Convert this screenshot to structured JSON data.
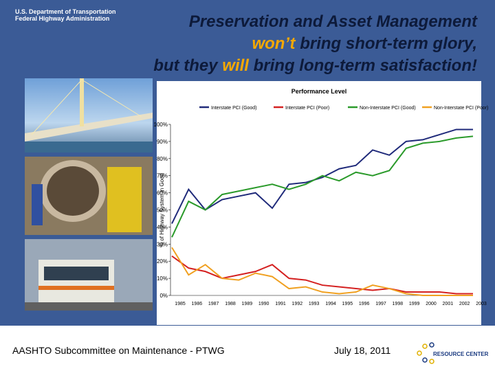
{
  "slide": {
    "logo": [
      "U.S. Department of Transportation",
      "Federal Highway Administration"
    ],
    "title": {
      "line1": "Preservation and Asset Management",
      "line2": [
        "won’t",
        "bring short-term glory,"
      ],
      "line3": [
        "but they",
        "will",
        "bring long-term satisfaction!"
      ]
    },
    "footer": {
      "left": "AASHTO Subcommittee on Maintenance - PTWG",
      "date": "July 18, 2011",
      "logo": "RESOURCE CENTER"
    }
  },
  "chart_data": {
    "type": "line",
    "title": "Performance Level",
    "y_label": "% of Highway System in Good",
    "categories": [
      "1985",
      "1986",
      "1987",
      "1988",
      "1989",
      "1990",
      "1991",
      "1992",
      "1993",
      "1994",
      "1995",
      "1996",
      "1997",
      "1998",
      "1999",
      "2000",
      "2001",
      "2002",
      "2003"
    ],
    "series": [
      {
        "name": "Interstate PCI (Good)",
        "color": "#1f2a7a",
        "values": [
          42,
          62,
          50,
          56,
          58,
          60,
          51,
          65,
          66,
          69,
          74,
          76,
          85,
          82,
          90,
          91,
          94,
          97,
          97
        ]
      },
      {
        "name": "Interstate PCI (Poor)",
        "color": "#d42020",
        "values": [
          23,
          16,
          14,
          10,
          12,
          14,
          18,
          10,
          9,
          6,
          5,
          4,
          3,
          4,
          2,
          2,
          2,
          1,
          1
        ]
      },
      {
        "name": "Non-Interstate PCI (Good)",
        "color": "#2a9a2a",
        "values": [
          34,
          55,
          50,
          59,
          61,
          63,
          65,
          62,
          65,
          70,
          67,
          72,
          70,
          73,
          86,
          89,
          90,
          92,
          93
        ]
      },
      {
        "name": "Non-Interstate PCI (Poor)",
        "color": "#f0a020",
        "values": [
          28,
          12,
          18,
          10,
          9,
          13,
          11,
          4,
          5,
          2,
          1,
          2,
          6,
          4,
          1,
          0,
          0,
          0,
          0
        ]
      }
    ],
    "ylim": [
      0,
      100
    ],
    "yticks": [
      {
        "value": 0,
        "label": "0%"
      },
      {
        "value": 10,
        "label": "10%"
      },
      {
        "value": 20,
        "label": "20%"
      },
      {
        "value": 30,
        "label": "30%"
      },
      {
        "value": 40,
        "label": "40%"
      },
      {
        "value": 50,
        "label": "50%"
      },
      {
        "value": 60,
        "label": "60%"
      },
      {
        "value": 70,
        "label": "70%"
      },
      {
        "value": 80,
        "label": "80%"
      },
      {
        "value": 90,
        "label": "90%"
      },
      {
        "value": 100,
        "label": "100%"
      }
    ],
    "grid": false,
    "legend": "top"
  }
}
